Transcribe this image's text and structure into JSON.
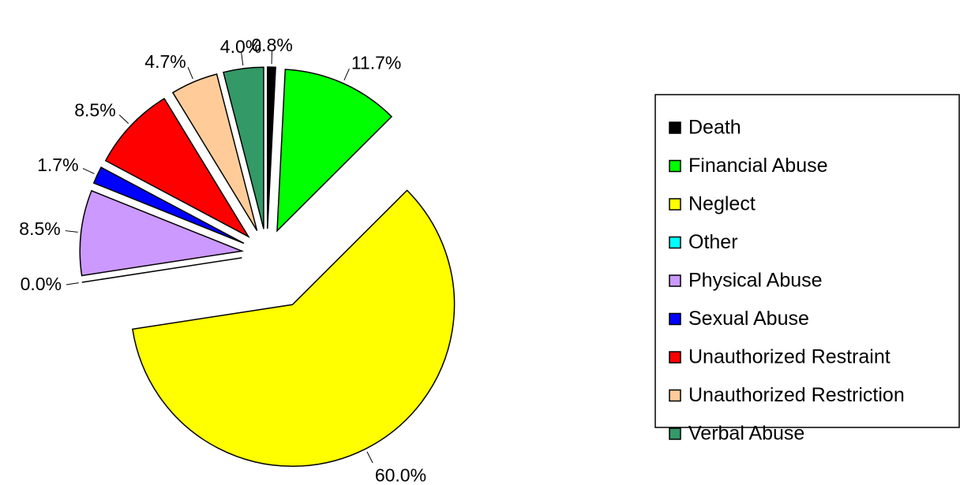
{
  "chart_data": {
    "type": "pie",
    "categories": [
      "Death",
      "Financial Abuse",
      "Neglect",
      "Other",
      "Physical Abuse",
      "Sexual Abuse",
      "Unauthorized Restraint",
      "Unauthorized Restriction",
      "Verbal Abuse"
    ],
    "values": [
      0.8,
      11.7,
      60.0,
      0.0,
      8.5,
      1.7,
      8.5,
      4.7,
      4.0
    ],
    "value_labels": [
      "0.8%",
      "11.7%",
      "60.0%",
      "0.0%",
      "8.5%",
      "1.7%",
      "8.5%",
      "4.7%",
      "4.0%"
    ],
    "colors": [
      "#000000",
      "#00ff00",
      "#ffff00",
      "#00ffff",
      "#cc99ff",
      "#0000ff",
      "#ff0000",
      "#ffcc99",
      "#339966"
    ],
    "legend": "right"
  }
}
